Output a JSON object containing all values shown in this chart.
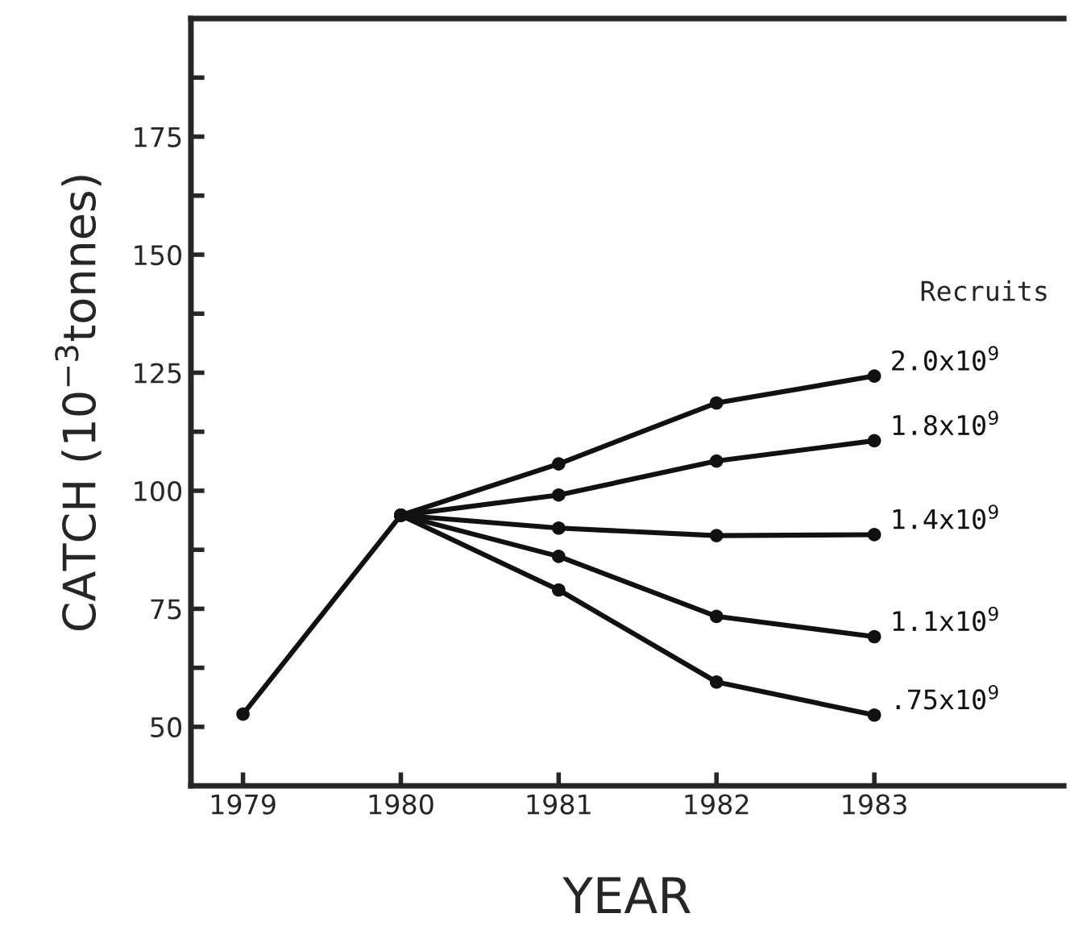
{
  "chart_data": {
    "type": "line",
    "xlabel": "YEAR",
    "ylabel": "CATCH (10$^{−3}$tonnes)",
    "xlim": [
      1978.67,
      1984.2
    ],
    "xticks": [
      1979,
      1980,
      1981,
      1982,
      1983
    ],
    "ylim": [
      37.5,
      200
    ],
    "yticks": [
      {
        "value": 37.5,
        "label": null
      },
      50,
      {
        "value": 62.5,
        "label": null
      },
      75,
      {
        "value": 87.5,
        "label": null
      },
      100,
      {
        "value": 112.5,
        "label": null
      },
      125,
      {
        "value": 137.5,
        "label": null
      },
      150,
      {
        "value": 162.5,
        "label": null
      },
      175,
      {
        "value": 187.5,
        "label": null
      }
    ],
    "marker": "circle",
    "line_style": "solid",
    "grid": false,
    "legend": false,
    "annotations": [
      "Recruits"
    ],
    "series": [
      {
        "color": "#111111",
        "x": [
          1979,
          1980
        ],
        "values": [
          52.7,
          94.8
        ]
      },
      {
        "name": "2.0x10$^{9}$",
        "color": "#111111",
        "x": [
          1980,
          1981,
          1982,
          1983
        ],
        "values": [
          94.8,
          105.7,
          118.6,
          124.3
        ]
      },
      {
        "name": "1.8x10$^{9}$",
        "color": "#111111",
        "x": [
          1980,
          1981,
          1982,
          1983
        ],
        "values": [
          94.8,
          99.1,
          106.3,
          110.6
        ]
      },
      {
        "name": "1.4x10$^{9}$",
        "color": "#111111",
        "x": [
          1980,
          1981,
          1982,
          1983
        ],
        "values": [
          94.8,
          92.1,
          90.5,
          90.7
        ]
      },
      {
        "name": "1.1x10$^{9}$",
        "color": "#111111",
        "x": [
          1980,
          1981,
          1982,
          1983
        ],
        "values": [
          94.8,
          86.1,
          73.4,
          69.1
        ]
      },
      {
        "name": ".75x10$^{9}$",
        "color": "#111111",
        "x": [
          1980,
          1981,
          1982,
          1983
        ],
        "values": [
          94.8,
          79.0,
          59.5,
          52.5
        ]
      }
    ]
  }
}
